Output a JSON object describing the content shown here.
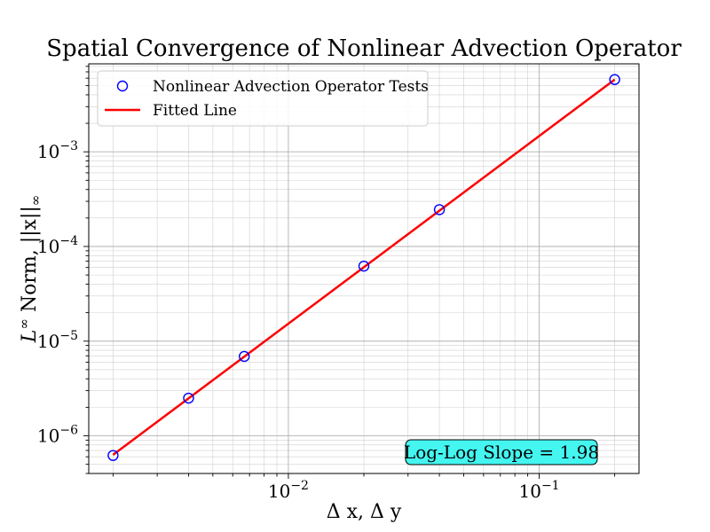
{
  "chart_data": {
    "type": "scatter",
    "title": "Spatial Convergence of Nonlinear Advection Operator",
    "xlabel": "Δ x, Δ y",
    "ylabel": "L^∞ Norm, ||x||_∞",
    "xscale": "log",
    "yscale": "log",
    "xlim": [
      0.0016,
      0.25
    ],
    "ylim": [
      4e-07,
      0.0085
    ],
    "grid": true,
    "legend_position": "upper-left",
    "x_ticks": [
      {
        "value": 0.01,
        "base": "10",
        "exp": "−2"
      },
      {
        "value": 0.1,
        "base": "10",
        "exp": "−1"
      }
    ],
    "y_ticks": [
      {
        "value": 1e-06,
        "base": "10",
        "exp": "−6"
      },
      {
        "value": 1e-05,
        "base": "10",
        "exp": "−5"
      },
      {
        "value": 0.0001,
        "base": "10",
        "exp": "−4"
      },
      {
        "value": 0.001,
        "base": "10",
        "exp": "−3"
      }
    ],
    "series": [
      {
        "name": "Nonlinear Advection Operator Tests",
        "kind": "scatter",
        "color": "#0000ff",
        "x": [
          0.002,
          0.004,
          0.00667,
          0.02,
          0.04,
          0.2
        ],
        "y": [
          6.2e-07,
          2.5e-06,
          6.9e-06,
          6.2e-05,
          0.000245,
          0.0058
        ]
      },
      {
        "name": "Fitted Line",
        "kind": "line",
        "color": "#ff0000",
        "x": [
          0.002,
          0.2
        ],
        "y": [
          6.3e-07,
          0.0058
        ]
      }
    ],
    "annotation": {
      "text": "Log-Log Slope = 1.98",
      "fill": "#44f5f0",
      "x": 0.07,
      "y": 6.2e-07
    }
  }
}
